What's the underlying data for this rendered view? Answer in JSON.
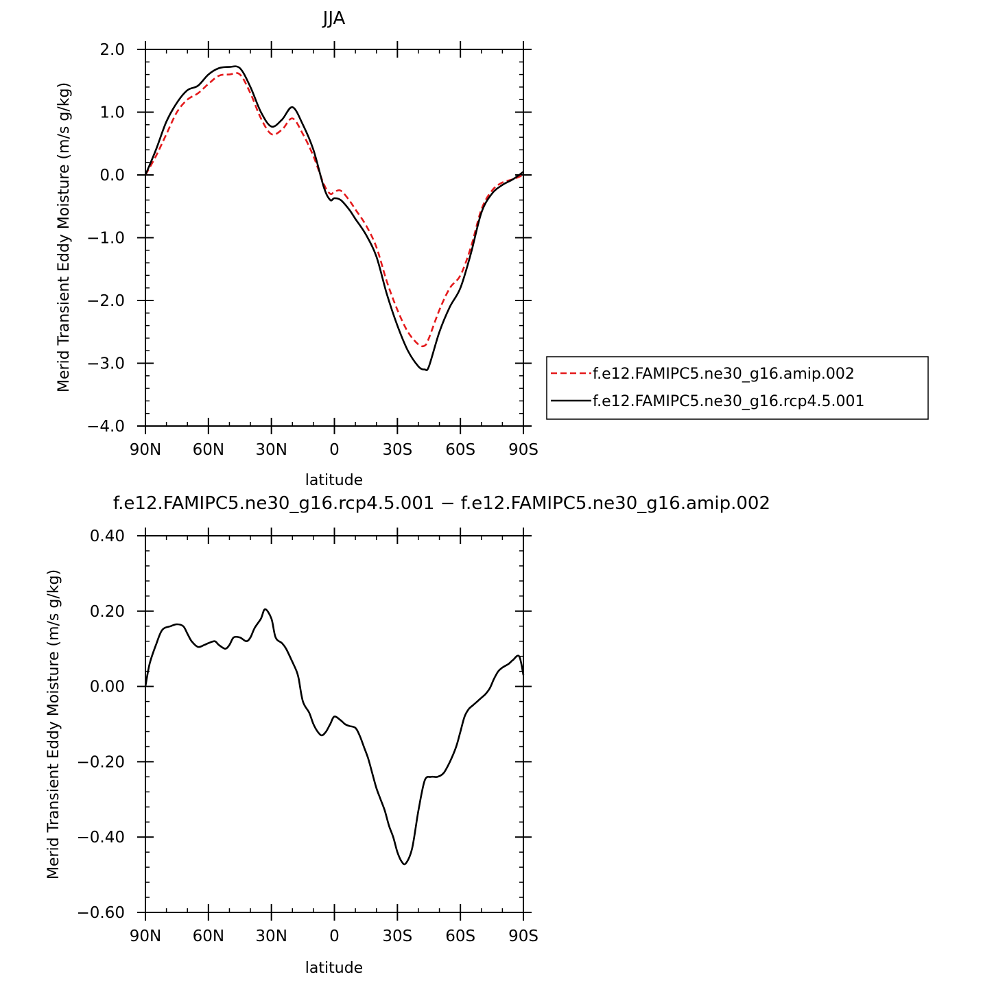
{
  "chart_data": [
    {
      "type": "line",
      "title": "JJA",
      "xlabel": "latitude",
      "ylabel": "Merid Transient Eddy Moisture (m/s g/kg)",
      "xlim": [
        -90,
        90
      ],
      "ylim": [
        -4.0,
        2.0
      ],
      "x_ticks": [
        -90,
        -60,
        -30,
        0,
        30,
        60,
        90
      ],
      "x_tick_labels": [
        "90N",
        "60N",
        "30N",
        "0",
        "30S",
        "60S",
        "90S"
      ],
      "y_ticks": [
        -4.0,
        -3.0,
        -2.0,
        -1.0,
        0.0,
        1.0,
        2.0
      ],
      "y_tick_labels": [
        "−4.0",
        "−3.0",
        "−2.0",
        "−1.0",
        "0.0",
        "1.0",
        "2.0"
      ],
      "grid": false,
      "legend_position": "right",
      "series": [
        {
          "name": "f.e12.FAMIPC5.ne30_g16.amip.002",
          "color": "#e41a1c",
          "dash": true,
          "x": [
            -90,
            -85,
            -80,
            -75,
            -70,
            -65,
            -60,
            -55,
            -50,
            -45,
            -40,
            -35,
            -30,
            -25,
            -20,
            -15,
            -10,
            -5,
            -2,
            0,
            3,
            7,
            10,
            15,
            20,
            25,
            30,
            35,
            40,
            43,
            45,
            50,
            55,
            60,
            65,
            70,
            75,
            80,
            85,
            90
          ],
          "y": [
            0.0,
            0.3,
            0.65,
            1.0,
            1.2,
            1.3,
            1.45,
            1.58,
            1.6,
            1.6,
            1.3,
            0.9,
            0.65,
            0.72,
            0.9,
            0.65,
            0.3,
            -0.15,
            -0.3,
            -0.27,
            -0.25,
            -0.4,
            -0.55,
            -0.8,
            -1.15,
            -1.7,
            -2.15,
            -2.5,
            -2.7,
            -2.72,
            -2.6,
            -2.15,
            -1.8,
            -1.6,
            -1.15,
            -0.55,
            -0.25,
            -0.12,
            -0.07,
            0.0
          ]
        },
        {
          "name": "f.e12.FAMIPC5.ne30_g16.rcp4.5.001",
          "color": "#000000",
          "dash": false,
          "x": [
            -90,
            -85,
            -80,
            -75,
            -70,
            -65,
            -60,
            -55,
            -50,
            -45,
            -40,
            -35,
            -30,
            -25,
            -20,
            -15,
            -10,
            -5,
            -2,
            0,
            3,
            7,
            10,
            15,
            20,
            25,
            30,
            35,
            40,
            43,
            45,
            50,
            55,
            60,
            65,
            70,
            75,
            80,
            85,
            90
          ],
          "y": [
            0.0,
            0.4,
            0.85,
            1.15,
            1.35,
            1.42,
            1.6,
            1.7,
            1.72,
            1.7,
            1.4,
            1.0,
            0.77,
            0.88,
            1.08,
            0.8,
            0.4,
            -0.2,
            -0.4,
            -0.37,
            -0.4,
            -0.55,
            -0.7,
            -0.95,
            -1.3,
            -1.9,
            -2.4,
            -2.8,
            -3.05,
            -3.1,
            -3.05,
            -2.5,
            -2.1,
            -1.8,
            -1.25,
            -0.6,
            -0.3,
            -0.16,
            -0.07,
            0.05
          ]
        }
      ]
    },
    {
      "type": "line",
      "title": "f.e12.FAMIPC5.ne30_g16.rcp4.5.001 − f.e12.FAMIPC5.ne30_g16.amip.002",
      "xlabel": "latitude",
      "ylabel": "Merid Transient Eddy Moisture (m/s g/kg)",
      "xlim": [
        -90,
        90
      ],
      "ylim": [
        -0.6,
        0.4
      ],
      "x_ticks": [
        -90,
        -60,
        -30,
        0,
        30,
        60,
        90
      ],
      "x_tick_labels": [
        "90N",
        "60N",
        "30N",
        "0",
        "30S",
        "60S",
        "90S"
      ],
      "y_ticks": [
        -0.6,
        -0.4,
        -0.2,
        0.0,
        0.2,
        0.4
      ],
      "y_tick_labels": [
        "−0.60",
        "−0.40",
        "−0.20",
        "0.00",
        "0.20",
        "0.40"
      ],
      "grid": false,
      "series": [
        {
          "color": "#000000",
          "dash": false,
          "x": [
            -90,
            -88,
            -85,
            -82,
            -78,
            -75,
            -72,
            -70,
            -68,
            -65,
            -62,
            -60,
            -57,
            -55,
            -52,
            -50,
            -48,
            -45,
            -42,
            -40,
            -38,
            -35,
            -33,
            -30,
            -28,
            -25,
            -23,
            -20,
            -18,
            -17,
            -15,
            -12,
            -10,
            -8,
            -6,
            -4,
            -2,
            0,
            3,
            5,
            7,
            10,
            12,
            14,
            16,
            18,
            20,
            22,
            24,
            26,
            28,
            30,
            32,
            34,
            37,
            40,
            43,
            46,
            49,
            52,
            55,
            58,
            60,
            62,
            64,
            66,
            68,
            70,
            72,
            74,
            76,
            78,
            80,
            83,
            85,
            88,
            90
          ],
          "y": [
            0.0,
            0.06,
            0.11,
            0.15,
            0.16,
            0.165,
            0.16,
            0.14,
            0.12,
            0.105,
            0.11,
            0.115,
            0.12,
            0.11,
            0.1,
            0.11,
            0.13,
            0.13,
            0.12,
            0.13,
            0.155,
            0.18,
            0.205,
            0.18,
            0.13,
            0.115,
            0.1,
            0.065,
            0.04,
            0.02,
            -0.04,
            -0.07,
            -0.1,
            -0.12,
            -0.13,
            -0.12,
            -0.1,
            -0.08,
            -0.09,
            -0.1,
            -0.105,
            -0.11,
            -0.13,
            -0.16,
            -0.19,
            -0.23,
            -0.27,
            -0.3,
            -0.33,
            -0.37,
            -0.4,
            -0.44,
            -0.465,
            -0.47,
            -0.43,
            -0.33,
            -0.25,
            -0.24,
            -0.24,
            -0.23,
            -0.2,
            -0.16,
            -0.12,
            -0.08,
            -0.06,
            -0.05,
            -0.04,
            -0.03,
            -0.02,
            -0.005,
            0.02,
            0.04,
            0.05,
            0.06,
            0.07,
            0.08,
            0.03
          ]
        }
      ]
    }
  ]
}
